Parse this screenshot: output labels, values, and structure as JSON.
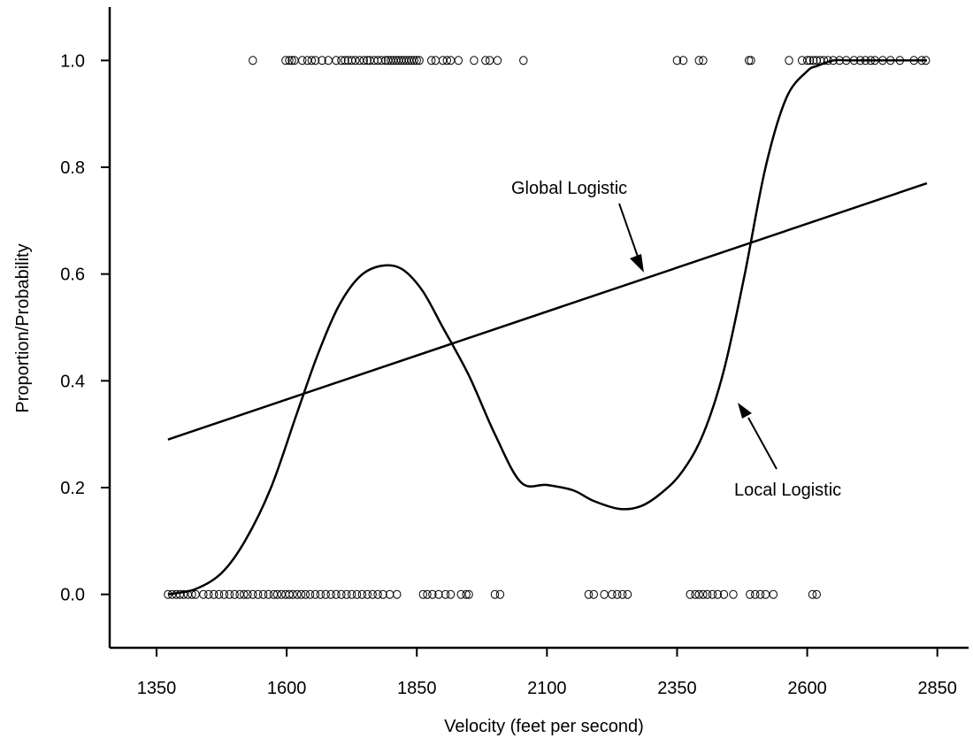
{
  "chart_data": {
    "type": "scatter",
    "title": "",
    "xlabel": "Velocity (feet per second)",
    "ylabel": "Proportion/Probability",
    "xlim": [
      1260,
      2910
    ],
    "ylim": [
      -0.1,
      1.1
    ],
    "x_ticks": [
      1350,
      1600,
      1850,
      2100,
      2350,
      2600,
      2850
    ],
    "y_ticks": [
      0.0,
      0.2,
      0.4,
      0.6,
      0.8,
      1.0
    ],
    "x_tick_labels": [
      "1350",
      "1600",
      "1850",
      "2100",
      "2350",
      "2600",
      "2850"
    ],
    "y_tick_labels": [
      "0.0",
      "0.2",
      "0.4",
      "0.6",
      "0.8",
      "1.0"
    ],
    "grid": false,
    "series": [
      {
        "name": "Global Logistic",
        "kind": "line",
        "x": [
          1372,
          2830
        ],
        "y": [
          0.29,
          0.77
        ]
      },
      {
        "name": "Local Logistic",
        "kind": "line",
        "x": [
          1372,
          1425,
          1475,
          1520,
          1570,
          1620,
          1660,
          1700,
          1740,
          1780,
          1820,
          1860,
          1900,
          1950,
          2000,
          2050,
          2100,
          2150,
          2190,
          2240,
          2280,
          2320,
          2360,
          2400,
          2440,
          2480,
          2520,
          2560,
          2600,
          2620,
          2650,
          2680,
          2720,
          2760,
          2830
        ],
        "y": [
          0.0,
          0.01,
          0.04,
          0.1,
          0.2,
          0.34,
          0.45,
          0.54,
          0.595,
          0.615,
          0.61,
          0.57,
          0.5,
          0.41,
          0.3,
          0.21,
          0.205,
          0.195,
          0.175,
          0.16,
          0.165,
          0.19,
          0.23,
          0.3,
          0.42,
          0.6,
          0.8,
          0.93,
          0.98,
          0.99,
          1.0,
          1.0,
          1.0,
          1.0,
          1.0
        ]
      },
      {
        "name": "",
        "kind": "points",
        "y_value": 1.0,
        "x": [
          1535,
          1598,
          1605,
          1610,
          1615,
          1630,
          1640,
          1648,
          1655,
          1668,
          1680,
          1695,
          1705,
          1712,
          1718,
          1725,
          1732,
          1740,
          1748,
          1755,
          1760,
          1768,
          1775,
          1782,
          1790,
          1795,
          1800,
          1805,
          1810,
          1815,
          1820,
          1825,
          1830,
          1835,
          1840,
          1845,
          1850,
          1855,
          1878,
          1886,
          1900,
          1908,
          1915,
          1930,
          1960,
          1982,
          1990,
          2005,
          2055,
          2350,
          2362,
          2392,
          2400,
          2488,
          2492,
          2565,
          2590,
          2600,
          2605,
          2612,
          2618,
          2625,
          2632,
          2640,
          2650,
          2662,
          2675,
          2690,
          2702,
          2712,
          2722,
          2730,
          2745,
          2760,
          2778,
          2805,
          2820,
          2828
        ]
      },
      {
        "name": "",
        "kind": "points",
        "y_value": 0.0,
        "x": [
          1372,
          1380,
          1388,
          1395,
          1402,
          1410,
          1418,
          1425,
          1440,
          1450,
          1460,
          1470,
          1480,
          1490,
          1500,
          1510,
          1518,
          1525,
          1535,
          1545,
          1555,
          1565,
          1575,
          1582,
          1590,
          1598,
          1605,
          1612,
          1620,
          1628,
          1636,
          1645,
          1655,
          1665,
          1675,
          1685,
          1695,
          1705,
          1715,
          1725,
          1735,
          1745,
          1755,
          1765,
          1775,
          1785,
          1798,
          1812,
          1862,
          1870,
          1880,
          1892,
          1905,
          1915,
          1935,
          1945,
          1950,
          2000,
          2010,
          2180,
          2190,
          2210,
          2225,
          2235,
          2245,
          2255,
          2375,
          2385,
          2392,
          2400,
          2408,
          2418,
          2428,
          2440,
          2458,
          2490,
          2500,
          2510,
          2520,
          2535,
          2610,
          2618
        ]
      }
    ],
    "annotations": [
      {
        "text": "Global Logistic"
      },
      {
        "text": "Local Logistic"
      }
    ]
  }
}
